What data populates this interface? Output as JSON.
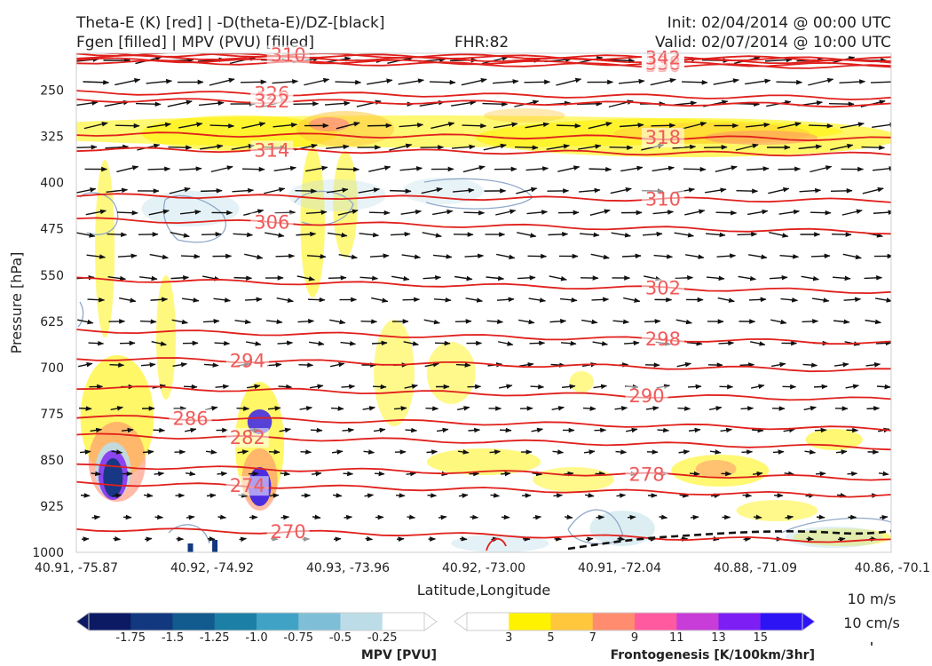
{
  "header": {
    "title_left_1": "Theta-E (K) [red] | -D(theta-E)/DZ-[black]",
    "title_left_2": "Fgen [filled] | MPV (PVU) [filled]",
    "fhr": "FHR:82",
    "init": "Init: 02/04/2014 @ 00:00 UTC",
    "valid": "Valid: 02/07/2014 @ 10:00 UTC"
  },
  "chart_data": {
    "type": "cross-section",
    "xlabel": "Latitude,Longitude",
    "ylabel": "Pressure [hPa]",
    "x_ticks": [
      "40.91, -75.87",
      "40.92, -74.92",
      "40.93, -73.96",
      "40.92, -73.00",
      "40.91, -72.04",
      "40.88, -71.09",
      "40.86, -70.1"
    ],
    "y_ticks": [
      250,
      325,
      400,
      475,
      550,
      625,
      700,
      775,
      850,
      925,
      1000
    ],
    "ylim": [
      190,
      1000
    ],
    "theta_e_contours": [
      {
        "label": "310",
        "label_x": 0.26,
        "p": 195
      },
      {
        "label": "330",
        "label_x": 0.72,
        "p": 208
      },
      {
        "label": "334",
        "label_x": 0.72,
        "p": 200
      },
      {
        "label": "338",
        "label_x": 0.72,
        "p": 205
      },
      {
        "label": "342",
        "label_x": 0.72,
        "p": 196
      },
      {
        "label": "326",
        "label_x": 0.24,
        "p": 258
      },
      {
        "label": "322",
        "label_x": 0.24,
        "p": 270
      },
      {
        "label": "318",
        "label_x": 0.72,
        "p": 325
      },
      {
        "label": "314",
        "label_x": 0.24,
        "p": 350
      },
      {
        "label": "310",
        "label_x": 0.72,
        "p": 425
      },
      {
        "label": "306",
        "label_x": 0.24,
        "p": 470
      },
      {
        "label": "302",
        "label_x": 0.72,
        "p": 567
      },
      {
        "label": "298",
        "label_x": 0.72,
        "p": 650
      },
      {
        "label": "294",
        "label_x": 0.21,
        "p": 695
      },
      {
        "label": "290",
        "label_x": 0.7,
        "p": 742
      },
      {
        "label": "286",
        "label_x": 0.14,
        "p": 790
      },
      {
        "label": "282",
        "label_x": 0.21,
        "p": 820
      },
      {
        "label": "278",
        "label_x": 0.7,
        "p": 870
      },
      {
        "label": "274",
        "label_x": 0.21,
        "p": 898
      },
      {
        "label": "270",
        "label_x": 0.26,
        "p": 972
      }
    ],
    "mpv_colorbar": {
      "label": "MPV [PVU]",
      "ticks": [
        "-1.75",
        "-1.5",
        "-1.25",
        "-1.0",
        "-0.75",
        "-0.5",
        "-0.25"
      ],
      "colors": [
        "#0b1a63",
        "#12387f",
        "#115b8f",
        "#1c7fa5",
        "#40a3c5",
        "#7ebfd7",
        "#bcdde8",
        "#ffffff"
      ]
    },
    "fgen_colorbar": {
      "label": "Frontogenesis [K/100km/3hr]",
      "ticks": [
        "3",
        "5",
        "7",
        "9",
        "11",
        "13",
        "15"
      ],
      "colors": [
        "#ffffff",
        "#fff200",
        "#ffc83c",
        "#ff8c6e",
        "#ff5aa0",
        "#c83cd7",
        "#7d1ef5",
        "#2d14f5"
      ]
    },
    "wind_reference": {
      "u": "10 m/s",
      "w": "10 cm/s"
    }
  }
}
